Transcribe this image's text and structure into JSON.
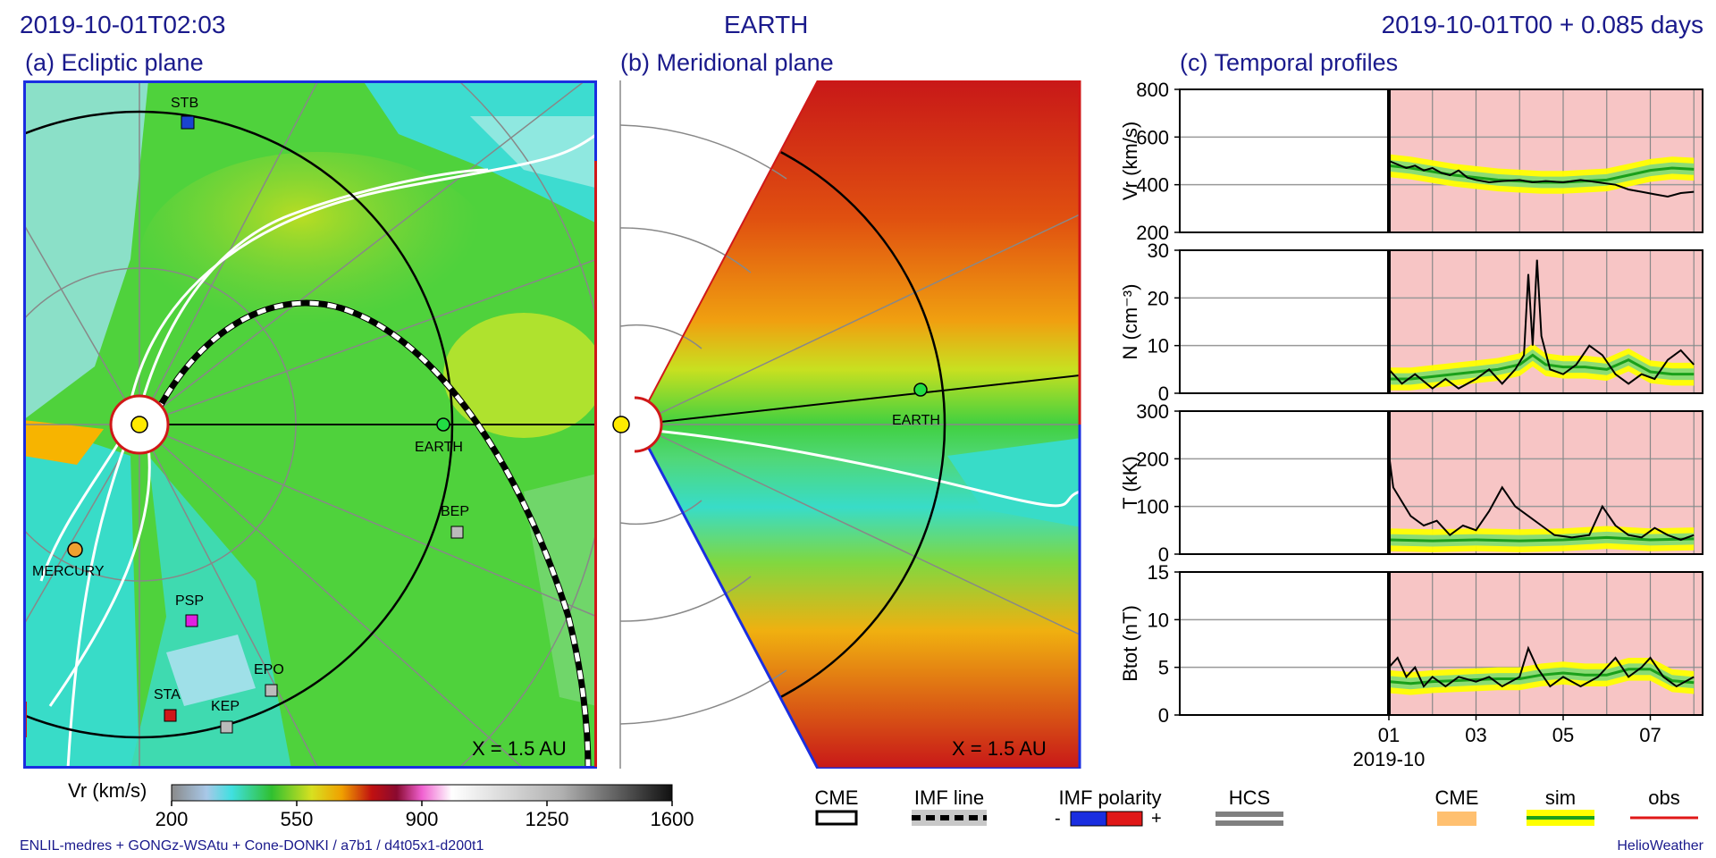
{
  "header": {
    "left_timestamp": "2019-10-01T02:03",
    "center_title": "EARTH",
    "right_time": "2019-10-01T00 +  0.085 days"
  },
  "panels": {
    "a_title": "(a) Ecliptic plane",
    "b_title": "(b) Meridional plane",
    "c_title": "(c) Temporal profiles",
    "scale_label": "X = 1.5 AU"
  },
  "ecliptic_labels": {
    "stb": "STB",
    "earth": "EARTH",
    "bep": "BEP",
    "mercury": "MERCURY",
    "psp": "PSP",
    "epo": "EPO",
    "sta": "STA",
    "kep": "KEP"
  },
  "meridional_labels": {
    "earth": "EARTH"
  },
  "colorbar": {
    "label": "Vr (km/s)",
    "ticks": [
      "200",
      "550",
      "900",
      "1250",
      "1600"
    ]
  },
  "legend": {
    "cme": "CME",
    "imf_line": "IMF line",
    "imf_polarity": "IMF polarity",
    "imf_minus": "-",
    "imf_plus": "+",
    "hcs": "HCS",
    "cme2": "CME",
    "sim": "sim",
    "obs": "obs"
  },
  "footer": {
    "left": "ENLIL-medres + GONGz-WSAtu + Cone-DONKI / a7b1 / d4t05x1-d200t1",
    "right": "HelioWeather"
  },
  "colors": {
    "title_blue": "#1a1a8c",
    "sim_green": "#1aa01a",
    "sim_band": "#ffff00",
    "obs": "#000000",
    "pink": "#f7c5c5",
    "orange": "#ffc070"
  },
  "chart_data": {
    "type": "line",
    "x_tick_labels": [
      "01",
      "03",
      "05",
      "07"
    ],
    "x_sublabel": "2019-10",
    "x_days": [
      1,
      3,
      5,
      7
    ],
    "panels": [
      {
        "ylabel": "Vr (km/s)",
        "ylim": [
          200,
          800
        ],
        "yticks": [
          200,
          400,
          600,
          800
        ],
        "sim": [
          [
            1,
            480
          ],
          [
            1.5,
            470
          ],
          [
            2,
            455
          ],
          [
            2.5,
            440
          ],
          [
            3,
            430
          ],
          [
            3.5,
            420
          ],
          [
            4,
            415
          ],
          [
            4.5,
            410
          ],
          [
            5,
            410
          ],
          [
            5.5,
            415
          ],
          [
            6,
            420
          ],
          [
            6.5,
            440
          ],
          [
            7,
            460
          ],
          [
            7.5,
            470
          ],
          [
            8,
            465
          ]
        ],
        "obs": [
          [
            1,
            500
          ],
          [
            1.2,
            485
          ],
          [
            1.4,
            470
          ],
          [
            1.6,
            480
          ],
          [
            1.8,
            460
          ],
          [
            2,
            470
          ],
          [
            2.2,
            450
          ],
          [
            2.4,
            440
          ],
          [
            2.6,
            460
          ],
          [
            2.8,
            430
          ],
          [
            3,
            420
          ],
          [
            3.3,
            410
          ],
          [
            3.6,
            415
          ],
          [
            4,
            420
          ],
          [
            4.3,
            410
          ],
          [
            4.6,
            415
          ],
          [
            5,
            410
          ],
          [
            5.4,
            420
          ],
          [
            5.8,
            410
          ],
          [
            6.2,
            400
          ],
          [
            6.5,
            380
          ],
          [
            6.8,
            370
          ],
          [
            7.1,
            360
          ],
          [
            7.4,
            350
          ],
          [
            7.7,
            365
          ],
          [
            8,
            370
          ]
        ]
      },
      {
        "ylabel": "N (cm⁻³)",
        "ylim": [
          0,
          30
        ],
        "yticks": [
          0,
          10,
          20,
          30
        ],
        "sim": [
          [
            1,
            3
          ],
          [
            1.5,
            3
          ],
          [
            2,
            3.5
          ],
          [
            2.5,
            4
          ],
          [
            3,
            4.5
          ],
          [
            3.5,
            5
          ],
          [
            4,
            6
          ],
          [
            4.3,
            8
          ],
          [
            4.6,
            6
          ],
          [
            5,
            5.5
          ],
          [
            5.5,
            5.5
          ],
          [
            6,
            5
          ],
          [
            6.5,
            7
          ],
          [
            7,
            4.5
          ],
          [
            7.5,
            4
          ],
          [
            8,
            4
          ]
        ],
        "obs": [
          [
            1,
            5
          ],
          [
            1.3,
            2
          ],
          [
            1.6,
            4
          ],
          [
            2,
            1
          ],
          [
            2.3,
            3
          ],
          [
            2.6,
            1
          ],
          [
            3,
            3
          ],
          [
            3.3,
            5
          ],
          [
            3.6,
            2
          ],
          [
            3.9,
            5
          ],
          [
            4.1,
            8
          ],
          [
            4.2,
            25
          ],
          [
            4.3,
            10
          ],
          [
            4.4,
            28
          ],
          [
            4.5,
            12
          ],
          [
            4.7,
            5
          ],
          [
            5,
            4
          ],
          [
            5.3,
            6
          ],
          [
            5.6,
            10
          ],
          [
            5.9,
            8
          ],
          [
            6.2,
            4
          ],
          [
            6.5,
            2
          ],
          [
            6.8,
            4
          ],
          [
            7.1,
            3
          ],
          [
            7.4,
            7
          ],
          [
            7.7,
            9
          ],
          [
            8,
            6
          ]
        ]
      },
      {
        "ylabel": "T (kK)",
        "ylim": [
          0,
          300
        ],
        "yticks": [
          0,
          100,
          200,
          300
        ],
        "sim": [
          [
            1,
            30
          ],
          [
            2,
            28
          ],
          [
            3,
            30
          ],
          [
            4,
            28
          ],
          [
            5,
            30
          ],
          [
            6,
            35
          ],
          [
            7,
            30
          ],
          [
            8,
            32
          ]
        ],
        "obs": [
          [
            1,
            210
          ],
          [
            1.1,
            140
          ],
          [
            1.3,
            110
          ],
          [
            1.5,
            80
          ],
          [
            1.8,
            60
          ],
          [
            2.1,
            70
          ],
          [
            2.4,
            40
          ],
          [
            2.7,
            60
          ],
          [
            3,
            50
          ],
          [
            3.3,
            90
          ],
          [
            3.6,
            140
          ],
          [
            3.9,
            100
          ],
          [
            4.2,
            80
          ],
          [
            4.5,
            60
          ],
          [
            4.8,
            40
          ],
          [
            5.2,
            35
          ],
          [
            5.6,
            40
          ],
          [
            5.9,
            100
          ],
          [
            6.2,
            60
          ],
          [
            6.5,
            40
          ],
          [
            6.8,
            35
          ],
          [
            7.1,
            55
          ],
          [
            7.4,
            40
          ],
          [
            7.7,
            30
          ],
          [
            8,
            40
          ]
        ]
      },
      {
        "ylabel": "Btot (nT)",
        "ylim": [
          0,
          15
        ],
        "yticks": [
          0,
          5,
          10,
          15
        ],
        "sim": [
          [
            1,
            3.5
          ],
          [
            1.5,
            3.3
          ],
          [
            2,
            3.5
          ],
          [
            2.5,
            3.6
          ],
          [
            3,
            3.7
          ],
          [
            3.5,
            3.8
          ],
          [
            4,
            3.8
          ],
          [
            4.5,
            4.2
          ],
          [
            5,
            4.4
          ],
          [
            5.5,
            4.2
          ],
          [
            6,
            4.2
          ],
          [
            6.5,
            4.8
          ],
          [
            7,
            4.8
          ],
          [
            7.5,
            3.6
          ],
          [
            8,
            3.4
          ]
        ],
        "obs": [
          [
            1,
            5
          ],
          [
            1.2,
            6
          ],
          [
            1.4,
            4
          ],
          [
            1.6,
            5
          ],
          [
            1.8,
            3
          ],
          [
            2,
            4
          ],
          [
            2.3,
            3
          ],
          [
            2.6,
            4
          ],
          [
            3,
            3.5
          ],
          [
            3.3,
            4
          ],
          [
            3.6,
            3
          ],
          [
            4,
            4
          ],
          [
            4.2,
            7
          ],
          [
            4.4,
            5
          ],
          [
            4.7,
            3
          ],
          [
            5,
            4
          ],
          [
            5.4,
            3
          ],
          [
            5.8,
            4
          ],
          [
            6.2,
            6
          ],
          [
            6.5,
            4
          ],
          [
            6.8,
            5
          ],
          [
            7,
            6
          ],
          [
            7.3,
            4
          ],
          [
            7.6,
            3
          ],
          [
            8,
            4
          ]
        ]
      }
    ]
  }
}
